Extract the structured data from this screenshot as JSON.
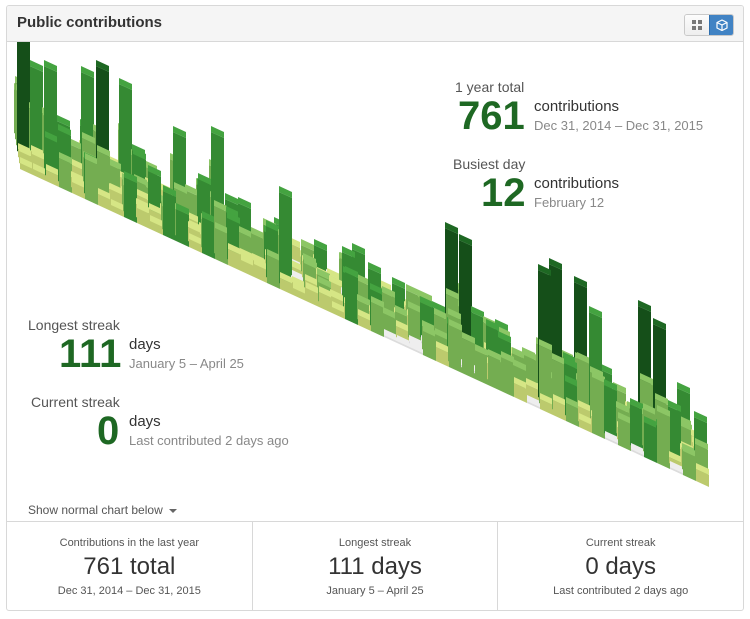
{
  "panel": {
    "title": "Public contributions"
  },
  "view_toggle": {
    "grid_icon": "grid-icon",
    "cube_icon": "cube-icon",
    "active": "cube"
  },
  "colors": {
    "level1": "#d6e685",
    "level2": "#8cc665",
    "level3": "#44a340",
    "level4": "#1e6823",
    "empty": "#eeeeee",
    "accent": "#4183c4"
  },
  "stats": {
    "year_total": {
      "label": "1 year total",
      "value": "761",
      "unit": "contributions",
      "range": "Dec 31, 2014 – Dec 31, 2015"
    },
    "busiest_day": {
      "label": "Busiest day",
      "value": "12",
      "unit": "contributions",
      "date": "February 12"
    },
    "longest_streak": {
      "label": "Longest streak",
      "value": "111",
      "unit": "days",
      "range": "January 5 – April 25"
    },
    "current_streak": {
      "label": "Current streak",
      "value": "0",
      "unit": "days",
      "note": "Last contributed 2 days ago"
    }
  },
  "toggle_link": "Show normal chart below",
  "footer": [
    {
      "label": "Contributions in the last year",
      "value": "761 total",
      "sub": "Dec 31, 2014 – Dec 31, 2015"
    },
    {
      "label": "Longest streak",
      "value": "111 days",
      "sub": "January 5 – April 25"
    },
    {
      "label": "Current streak",
      "value": "0 days",
      "sub": "Last contributed 2 days ago"
    }
  ]
}
